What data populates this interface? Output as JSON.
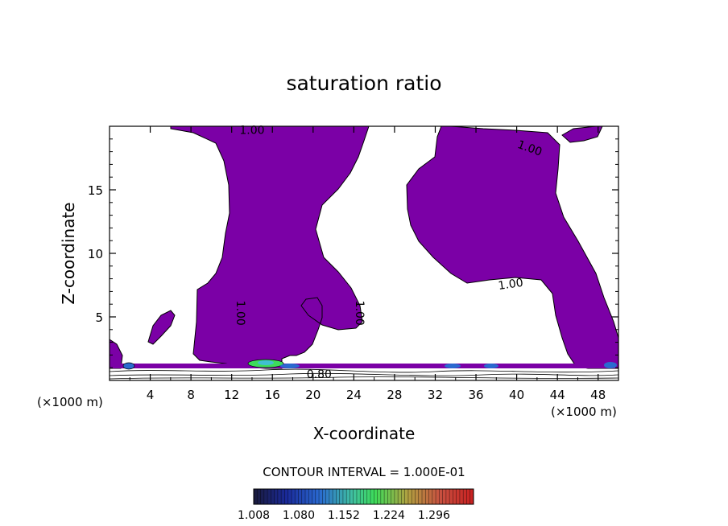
{
  "chart_data": {
    "type": "contour",
    "title": "saturation ratio",
    "xlabel": "X-coordinate",
    "ylabel": "Z-coordinate",
    "x_unit": "(×1000 m)",
    "x_unit_right": "(×1000 m)",
    "xlim": [
      0,
      50
    ],
    "ylim": [
      0,
      20
    ],
    "x_ticks": [
      4,
      8,
      12,
      16,
      20,
      24,
      28,
      32,
      36,
      40,
      44,
      48
    ],
    "y_ticks": [
      5,
      10,
      15
    ],
    "contour_labels": [
      {
        "text": "1.00",
        "x": 14.0,
        "z": 19.7
      },
      {
        "text": "1.00",
        "x": 41.3,
        "z": 18.3
      },
      {
        "text": "1.00",
        "x": 39.4,
        "z": 7.6
      },
      {
        "text": "1.00",
        "x": 12.9,
        "z": 5.3
      },
      {
        "text": "1.00",
        "x": 24.6,
        "z": 5.3
      },
      {
        "text": "0.80",
        "x": 20.6,
        "z": 0.5
      }
    ],
    "contour_interval_text": "CONTOUR INTERVAL = 1.000E-01",
    "colorbar": {
      "tick_labels": [
        "1.008",
        "1.080",
        "1.152",
        "1.224",
        "1.296"
      ],
      "min": 1.008,
      "max": 1.296
    },
    "colors": {
      "supersaturated_fill": "#7b00a6",
      "colorbar_low": "#0a0a60",
      "colorbar_mid": "#3ddc5a",
      "colorbar_high": "#c82020"
    }
  }
}
